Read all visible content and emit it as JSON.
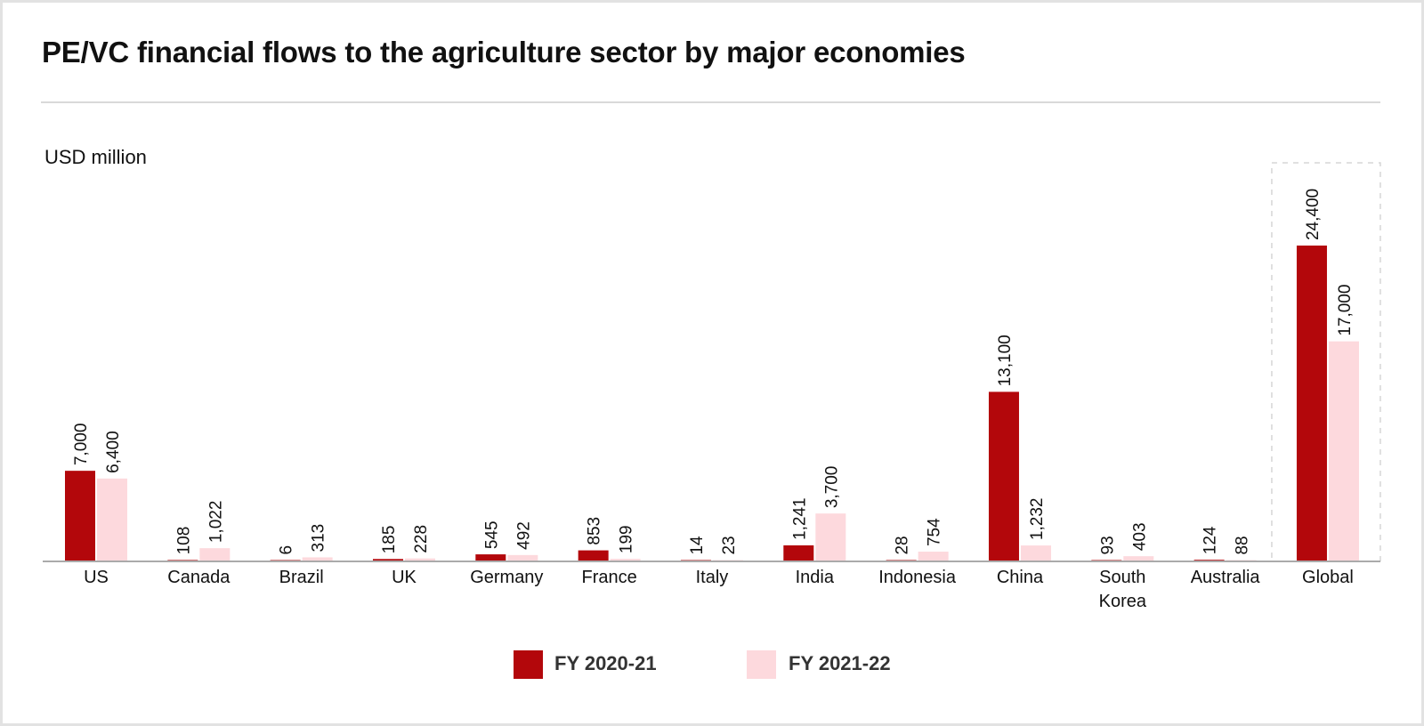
{
  "chart_data": {
    "type": "bar",
    "title": "PE/VC financial flows to the agriculture sector by major economies",
    "ylabel": "USD million",
    "xlabel": "",
    "categories": [
      "US",
      "Canada",
      "Brazil",
      "UK",
      "Germany",
      "France",
      "Italy",
      "India",
      "Indonesia",
      "China",
      "South Korea",
      "Australia",
      "Global"
    ],
    "series": [
      {
        "name": "FY 2020-21",
        "color": "#b3070b",
        "values": [
          7000,
          108,
          6,
          185,
          545,
          853,
          14,
          1241,
          28,
          13100,
          93,
          124,
          24400
        ],
        "labels": [
          "7,000",
          "108",
          "6",
          "185",
          "545",
          "853",
          "14",
          "1,241",
          "28",
          "13,100",
          "93",
          "124",
          "24,400"
        ]
      },
      {
        "name": "FY 2021-22",
        "color": "#fdd9dd",
        "values": [
          6400,
          1022,
          313,
          228,
          492,
          199,
          23,
          3700,
          754,
          1232,
          403,
          88,
          17000
        ],
        "labels": [
          "6,400",
          "1,022",
          "313",
          "228",
          "492",
          "199",
          "23",
          "3,700",
          "754",
          "1,232",
          "403",
          "88",
          "17,000"
        ]
      }
    ],
    "ylim": [
      0,
      26000
    ],
    "grid": false,
    "legend_position": "bottom-center",
    "highlighted_category": "Global"
  }
}
